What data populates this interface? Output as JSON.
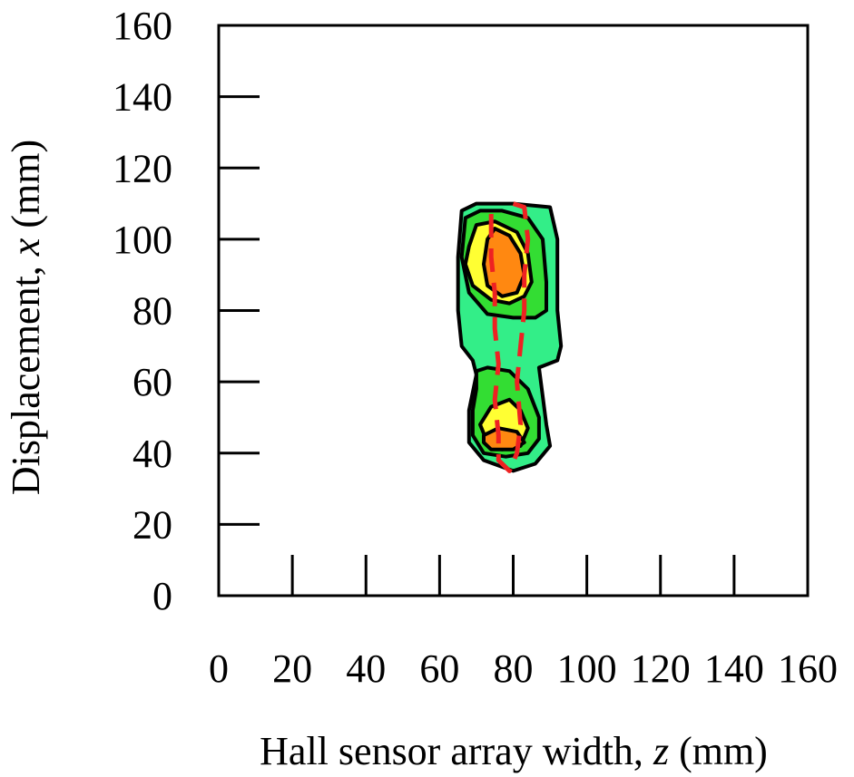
{
  "chart_data": {
    "type": "contour",
    "xlabel": "Hall sensor array width,",
    "xlabel_var": "z",
    "xlabel_unit": "(mm)",
    "ylabel": "Displacement,",
    "ylabel_var": "x",
    "ylabel_unit": "(mm)",
    "xlim": [
      0,
      160
    ],
    "ylim": [
      0,
      160
    ],
    "x_ticks": [
      0,
      20,
      40,
      60,
      80,
      100,
      120,
      140,
      160
    ],
    "y_ticks": [
      0,
      20,
      40,
      60,
      80,
      100,
      120,
      140,
      160
    ],
    "x_tick_labels": [
      "0",
      "20",
      "40",
      "60",
      "80",
      "100",
      "120",
      "140",
      "160"
    ],
    "y_tick_labels": [
      "0",
      "20",
      "40",
      "60",
      "80",
      "100",
      "120",
      "140",
      "160"
    ],
    "colors": {
      "level1": "#33ee88",
      "level2": "#33dd33",
      "level3": "#ffff33",
      "level4": "#ff8811",
      "outline": "#000000",
      "dashed": "#ee2222"
    },
    "regions": [
      {
        "level": 1,
        "points": [
          [
            66,
            108
          ],
          [
            70,
            110
          ],
          [
            80,
            110
          ],
          [
            90,
            109
          ],
          [
            92,
            100
          ],
          [
            92,
            80
          ],
          [
            93,
            70
          ],
          [
            92,
            66
          ],
          [
            87,
            64
          ],
          [
            88,
            56
          ],
          [
            89,
            48
          ],
          [
            90,
            42
          ],
          [
            86,
            37
          ],
          [
            80,
            35
          ],
          [
            72,
            38
          ],
          [
            68,
            43
          ],
          [
            68,
            52
          ],
          [
            70,
            62
          ],
          [
            69,
            66
          ],
          [
            66,
            70
          ],
          [
            65,
            80
          ],
          [
            65,
            95
          ]
        ]
      },
      {
        "level": 2,
        "points": [
          [
            67,
            106
          ],
          [
            71,
            108
          ],
          [
            77,
            108
          ],
          [
            84,
            106
          ],
          [
            88,
            100
          ],
          [
            89,
            88
          ],
          [
            89,
            80
          ],
          [
            86,
            78
          ],
          [
            80,
            78
          ],
          [
            73,
            79
          ],
          [
            68,
            85
          ],
          [
            66,
            95
          ]
        ]
      },
      {
        "level": 2,
        "points": [
          [
            70,
            63
          ],
          [
            73,
            64
          ],
          [
            79,
            63
          ],
          [
            84,
            58
          ],
          [
            87,
            50
          ],
          [
            87,
            44
          ],
          [
            84,
            40
          ],
          [
            78,
            39
          ],
          [
            72,
            40
          ],
          [
            69,
            45
          ],
          [
            69,
            52
          ],
          [
            70,
            58
          ]
        ]
      },
      {
        "level": 3,
        "points": [
          [
            68,
            98
          ],
          [
            70,
            104
          ],
          [
            75,
            105
          ],
          [
            81,
            102
          ],
          [
            84,
            96
          ],
          [
            85,
            88
          ],
          [
            83,
            84
          ],
          [
            79,
            82
          ],
          [
            74,
            83
          ],
          [
            69,
            87
          ],
          [
            67,
            93
          ]
        ]
      },
      {
        "level": 3,
        "points": [
          [
            71,
            48
          ],
          [
            74,
            53
          ],
          [
            79,
            55
          ],
          [
            82,
            52
          ],
          [
            84,
            47
          ],
          [
            82,
            42
          ],
          [
            77,
            41
          ],
          [
            73,
            43
          ]
        ]
      },
      {
        "level": 4,
        "points": [
          [
            73,
            100
          ],
          [
            75,
            103
          ],
          [
            79,
            101
          ],
          [
            82,
            96
          ],
          [
            83,
            90
          ],
          [
            81,
            85
          ],
          [
            77,
            84
          ],
          [
            73,
            87
          ],
          [
            72,
            93
          ]
        ]
      },
      {
        "level": 4,
        "points": [
          [
            72,
            45
          ],
          [
            76,
            47
          ],
          [
            81,
            46
          ],
          [
            83,
            43
          ],
          [
            80,
            41
          ],
          [
            74,
            41
          ],
          [
            72,
            43
          ]
        ]
      }
    ],
    "dashed_outline": [
      [
        80,
        110
      ],
      [
        83,
        109
      ],
      [
        84,
        100
      ],
      [
        83,
        90
      ],
      [
        83,
        80
      ],
      [
        82,
        70
      ],
      [
        81,
        60
      ],
      [
        82,
        48
      ],
      [
        81,
        40
      ],
      [
        79,
        35
      ],
      [
        76,
        38
      ],
      [
        76,
        45
      ],
      [
        75,
        55
      ],
      [
        76,
        65
      ],
      [
        75,
        75
      ],
      [
        75,
        85
      ],
      [
        74,
        95
      ],
      [
        74,
        110
      ]
    ]
  }
}
